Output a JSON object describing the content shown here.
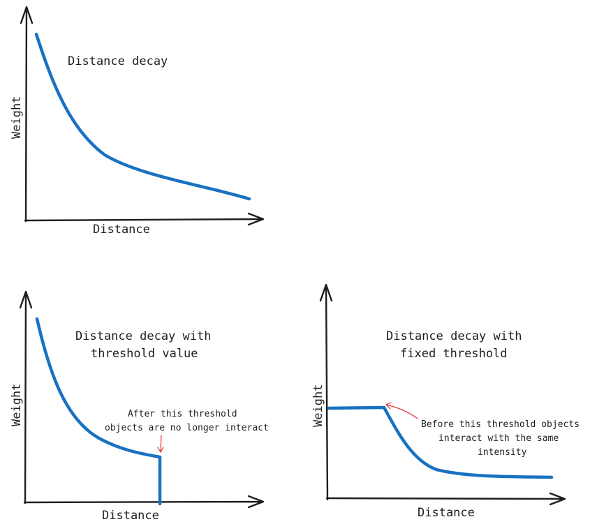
{
  "colors": {
    "ink": "#1e1e1e",
    "curve": "#1971c2",
    "annotation_arrow": "#e03131"
  },
  "panels": {
    "distance_decay": {
      "title": "Distance decay",
      "xlabel": "Distance",
      "ylabel": "Weight"
    },
    "threshold_value": {
      "title_line1": "Distance decay with",
      "title_line2": "threshold value",
      "xlabel": "Distance",
      "ylabel": "Weight",
      "note_line1": "After this threshold",
      "note_line2": "objects are no longer interact"
    },
    "fixed_threshold": {
      "title_line1": "Distance decay with",
      "title_line2": "fixed threshold",
      "xlabel": "Distance",
      "ylabel": "Weight",
      "note_line1": "Before this threshold objects",
      "note_line2": "interact with the same",
      "note_line3": "intensity"
    }
  }
}
